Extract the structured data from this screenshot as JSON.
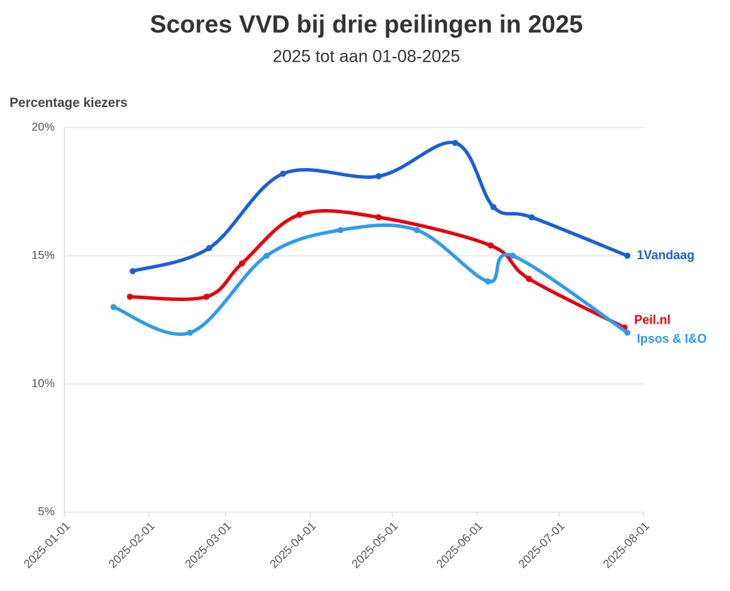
{
  "chart_data": {
    "type": "line",
    "title": "Scores VVD bij drie peilingen in 2025",
    "subtitle": "2025 tot aan 01-08-2025",
    "y_label": "Percentage kiezers",
    "grid": true,
    "xlim": [
      "2025-01-01",
      "2025-08-01"
    ],
    "xticks": [
      "2025-01-01",
      "2025-02-01",
      "2025-03-01",
      "2025-04-01",
      "2025-05-01",
      "2025-06-01",
      "2025-07-01",
      "2025-08-01"
    ],
    "ylim": [
      5,
      20
    ],
    "yticks": [
      {
        "value": 5,
        "label": "5%"
      },
      {
        "value": 10,
        "label": "10%"
      },
      {
        "value": 15,
        "label": "15%"
      },
      {
        "value": 20,
        "label": "20%"
      }
    ],
    "series": [
      {
        "name": "1Vandaag",
        "color": "#1a5fd6",
        "x": [
          "2025-01-26",
          "2025-02-23",
          "2025-03-22",
          "2025-04-26",
          "2025-05-24",
          "2025-06-07",
          "2025-06-21",
          "2025-07-26"
        ],
        "values": [
          14.4,
          15.3,
          18.2,
          18.1,
          19.4,
          16.9,
          16.5,
          15.0
        ]
      },
      {
        "name": "Peil.nl",
        "color": "#e8000b",
        "x": [
          "2025-01-25",
          "2025-02-22",
          "2025-03-07",
          "2025-03-28",
          "2025-04-26",
          "2025-06-06",
          "2025-06-20",
          "2025-07-25"
        ],
        "values": [
          13.4,
          13.4,
          14.7,
          16.6,
          16.5,
          15.4,
          14.1,
          12.2
        ]
      },
      {
        "name": "Ipsos & I&O",
        "color": "#2e9bef",
        "x": [
          "2025-01-19",
          "2025-02-16",
          "2025-03-16",
          "2025-04-12",
          "2025-05-10",
          "2025-06-05",
          "2025-06-14",
          "2025-07-26"
        ],
        "values": [
          13.0,
          12.0,
          15.0,
          16.0,
          16.0,
          14.0,
          15.0,
          12.0
        ]
      }
    ]
  }
}
